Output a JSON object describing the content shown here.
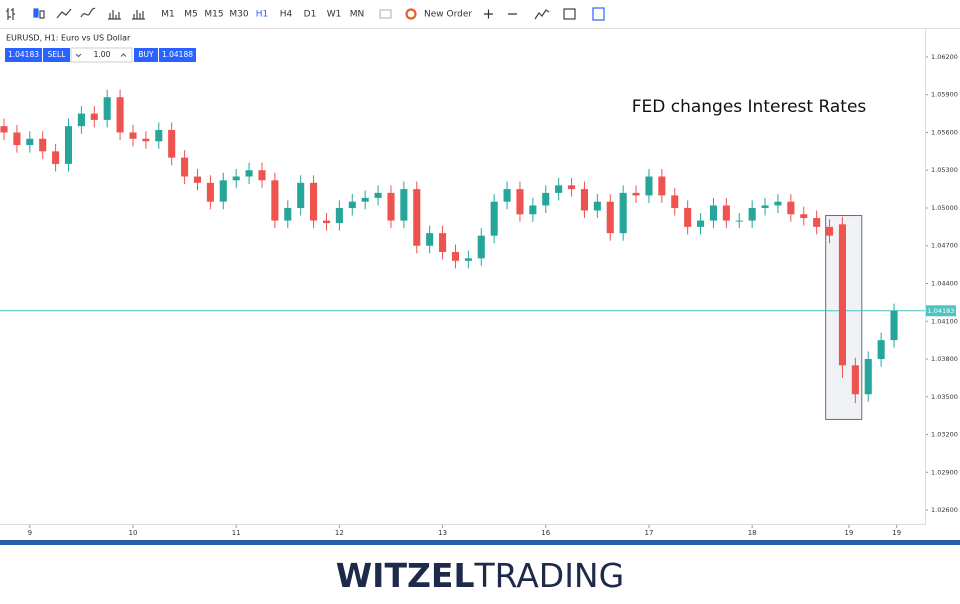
{
  "toolbar": {
    "timeframes": [
      "M1",
      "M5",
      "M15",
      "M30",
      "H1",
      "H4",
      "D1",
      "W1",
      "MN"
    ],
    "active": "H1",
    "new_order": "New Order"
  },
  "trade_panel": {
    "symbol": "EURUSD, H1: Euro vs US Dollar",
    "bid": "1.04183",
    "sell": "SELL",
    "volume": "1.00",
    "buy": "BUY",
    "ask": "1.04188"
  },
  "footer": {
    "brand_bold": "WITZEL",
    "brand_light": "TRADING"
  },
  "chart_data": {
    "type": "candlestick",
    "annotation": "FED changes Interest Rates",
    "open": [
      1.0565,
      1.056,
      1.055,
      1.0555,
      1.0545,
      1.0535,
      1.0565,
      1.0575,
      1.057,
      1.0588,
      1.056,
      1.0555,
      1.0553,
      1.0562,
      1.054,
      1.0525,
      1.052,
      1.0505,
      1.0522,
      1.0525,
      1.053,
      1.0522,
      1.049,
      1.05,
      1.052,
      1.049,
      1.0488,
      1.05,
      1.0505,
      1.0508,
      1.0512,
      1.049,
      1.0515,
      1.047,
      1.048,
      1.0465,
      1.0458,
      1.046,
      1.0478,
      1.0505,
      1.0515,
      1.0495,
      1.0502,
      1.0512,
      1.0518,
      1.0515,
      1.0498,
      1.0505,
      1.048,
      1.0512,
      1.051,
      1.0525,
      1.051,
      1.05,
      1.0485,
      1.049,
      1.0502,
      1.049,
      1.049,
      1.05,
      1.0502,
      1.0505,
      1.0495,
      1.0492,
      1.0485,
      1.0487,
      1.0375,
      1.0352,
      1.038,
      1.0395
    ],
    "high": [
      1.0571,
      1.0566,
      1.0561,
      1.0561,
      1.0551,
      1.0571,
      1.0581,
      1.0581,
      1.0594,
      1.0594,
      1.0566,
      1.0561,
      1.0568,
      1.0568,
      1.0546,
      1.0531,
      1.0526,
      1.0528,
      1.0531,
      1.0536,
      1.0536,
      1.0528,
      1.0506,
      1.0526,
      1.0526,
      1.0496,
      1.0506,
      1.0511,
      1.0514,
      1.0518,
      1.0518,
      1.0521,
      1.0521,
      1.0486,
      1.0486,
      1.0471,
      1.0466,
      1.0484,
      1.0511,
      1.0521,
      1.0521,
      1.0508,
      1.0518,
      1.0524,
      1.0524,
      1.0521,
      1.0511,
      1.0511,
      1.0518,
      1.0518,
      1.0531,
      1.0531,
      1.0516,
      1.0506,
      1.0496,
      1.0508,
      1.0508,
      1.0496,
      1.0506,
      1.0508,
      1.0511,
      1.0511,
      1.0501,
      1.0498,
      1.0491,
      1.0493,
      1.0381,
      1.0386,
      1.0401,
      1.0424
    ],
    "low": [
      1.0554,
      1.0544,
      1.0544,
      1.0539,
      1.0529,
      1.0529,
      1.0559,
      1.0564,
      1.0564,
      1.0554,
      1.0549,
      1.0547,
      1.0547,
      1.0534,
      1.0519,
      1.0514,
      1.0499,
      1.0499,
      1.0516,
      1.0519,
      1.0516,
      1.0484,
      1.0484,
      1.0494,
      1.0484,
      1.0482,
      1.0482,
      1.0494,
      1.0499,
      1.0502,
      1.0484,
      1.0484,
      1.0464,
      1.0464,
      1.0459,
      1.0452,
      1.0452,
      1.0454,
      1.0472,
      1.0499,
      1.0489,
      1.0489,
      1.0496,
      1.0506,
      1.0509,
      1.0492,
      1.0492,
      1.0474,
      1.0474,
      1.0504,
      1.0504,
      1.0504,
      1.0494,
      1.0479,
      1.0479,
      1.0484,
      1.0484,
      1.0484,
      1.0484,
      1.0494,
      1.0496,
      1.0489,
      1.0486,
      1.0479,
      1.0472,
      1.0365,
      1.0345,
      1.0346,
      1.0374,
      1.0389
    ],
    "close": [
      1.056,
      1.055,
      1.0555,
      1.0545,
      1.0535,
      1.0565,
      1.0575,
      1.057,
      1.0588,
      1.056,
      1.0555,
      1.0553,
      1.0562,
      1.054,
      1.0525,
      1.052,
      1.0505,
      1.0522,
      1.0525,
      1.053,
      1.0522,
      1.049,
      1.05,
      1.052,
      1.049,
      1.0488,
      1.05,
      1.0505,
      1.0508,
      1.0512,
      1.049,
      1.0515,
      1.047,
      1.048,
      1.0465,
      1.0458,
      1.046,
      1.0478,
      1.0505,
      1.0515,
      1.0495,
      1.0502,
      1.0512,
      1.0518,
      1.0515,
      1.0498,
      1.0505,
      1.048,
      1.0512,
      1.051,
      1.0525,
      1.051,
      1.05,
      1.0485,
      1.049,
      1.0502,
      1.049,
      1.049,
      1.05,
      1.0502,
      1.0505,
      1.0495,
      1.0492,
      1.0485,
      1.0478,
      1.0375,
      1.0352,
      1.038,
      1.0395,
      1.04183
    ],
    "up_color": "#26a69a",
    "down_color": "#ef5350",
    "xlim": [
      -0.31,
      71.4
    ],
    "xticks": [
      {
        "value": 2,
        "label": "9"
      },
      {
        "value": 10,
        "label": "10"
      },
      {
        "value": 18,
        "label": "11"
      },
      {
        "value": 26,
        "label": "12"
      },
      {
        "value": 34,
        "label": "13"
      },
      {
        "value": 42,
        "label": "16"
      },
      {
        "value": 50,
        "label": "17"
      },
      {
        "value": 58,
        "label": "18"
      },
      {
        "value": 65.5,
        "label": "19"
      },
      {
        "value": 69.2,
        "label": "19"
      }
    ],
    "ylim": [
      1.02505,
      1.0643
    ],
    "yticks": [
      {
        "value": 1.062,
        "label": "1.06200"
      },
      {
        "value": 1.059,
        "label": "1.05900"
      },
      {
        "value": 1.056,
        "label": "1.05600"
      },
      {
        "value": 1.053,
        "label": "1.05300"
      },
      {
        "value": 1.05,
        "label": "1.05000"
      },
      {
        "value": 1.047,
        "label": "1.04700"
      },
      {
        "value": 1.044,
        "label": "1.04400"
      },
      {
        "value": 1.041,
        "label": "1.04100"
      },
      {
        "value": 1.038,
        "label": "1.03800"
      },
      {
        "value": 1.035,
        "label": "1.03500"
      },
      {
        "value": 1.032,
        "label": "1.03200"
      },
      {
        "value": 1.029,
        "label": "1.02900"
      },
      {
        "value": 1.026,
        "label": "1.02600"
      }
    ],
    "price_line": {
      "value": 1.04183,
      "label": "1.04183"
    },
    "price_line_color": "#4fc3c0",
    "highlight": {
      "x": [
        63.7,
        66.5
      ],
      "y": [
        1.0332,
        1.0494
      ]
    }
  }
}
